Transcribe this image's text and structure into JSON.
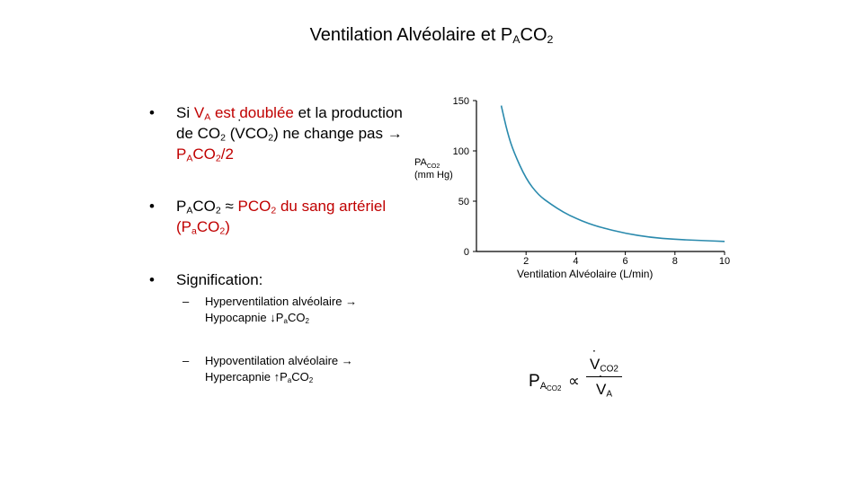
{
  "slide": {
    "title_main": "Ventilation Alvéolaire et P",
    "title_sub": "A",
    "title_tail": "CO",
    "title_sub2": "2"
  },
  "bullets": [
    {
      "marker": "•",
      "l1_a": "Si ",
      "l1_red": "V",
      "l1_red_sub": "A",
      "l1_red2": " est doublée",
      "l1_b": " et la production de CO",
      "l1_sub": "2",
      "l1_c": " (",
      "l1_v": "V",
      "l1_d": "CO",
      "l1_sub2": "2",
      "l1_e": ") ne change pas ",
      "l1_arrow": "→",
      "l1_red3": " P",
      "l1_red3_sub": "A",
      "l1_red3_tail": "CO",
      "l1_red3_sub2": "2",
      "l1_red3_end": "/2"
    },
    {
      "marker": "•",
      "p": "P",
      "p_sub": "A",
      "co": "CO",
      "co_sub": "2",
      "approx": " ≈ ",
      "red": "PCO",
      "red_sub": "2",
      "red_tail": " du sang artériel (P",
      "red_sub2": "a",
      "red_tail2": "CO",
      "red_sub3": "2",
      "red_end": ")"
    },
    {
      "marker": "•",
      "text": "Signification:"
    }
  ],
  "sub_bullets": [
    {
      "marker": "–",
      "l1": "Hyperventilation alvéolaire ",
      "arrow": "→",
      "l2": " Hypocapnie ",
      "arrow2": "↓",
      "p": "P",
      "p_sub": "a",
      "co": "CO",
      "co_sub": "2"
    },
    {
      "marker": "–",
      "l1": "Hypoventilation alvéolaire ",
      "arrow": "→",
      "l2": " Hypercapnie ",
      "arrow2": "↑",
      "p": "P",
      "p_sub": "a",
      "co": "CO",
      "co_sub": "2"
    }
  ],
  "formula": {
    "lhs": "P",
    "lhs_sub": "A",
    "lhs_subsub": "CO2",
    "prop": "∝",
    "num": "V",
    "num_sub": "CO2",
    "den": "V",
    "den_sub": "A"
  },
  "chart_data": {
    "type": "line",
    "xlabel": "Ventilation Alvéolaire (L/min)",
    "ylabel_main": "PA",
    "ylabel_sub": "CO2",
    "ylabel_unit": "(mm Hg)",
    "xlim": [
      0,
      10
    ],
    "ylim": [
      0,
      150
    ],
    "x_ticks": [
      2,
      4,
      6,
      8,
      10
    ],
    "y_ticks": [
      0,
      50,
      100,
      150
    ],
    "grid": false,
    "line_color": "#2a8aad",
    "series": [
      {
        "x": [
          1.0,
          1.25,
          1.5,
          2.0,
          2.5,
          3.0,
          3.5,
          4.0,
          4.5,
          5.0,
          6.0,
          7.0,
          8.0,
          9.0,
          10.0
        ],
        "y": [
          145,
          118,
          99,
          72,
          56,
          47,
          39,
          33,
          28,
          24,
          18,
          14,
          12,
          11,
          10
        ]
      }
    ]
  }
}
